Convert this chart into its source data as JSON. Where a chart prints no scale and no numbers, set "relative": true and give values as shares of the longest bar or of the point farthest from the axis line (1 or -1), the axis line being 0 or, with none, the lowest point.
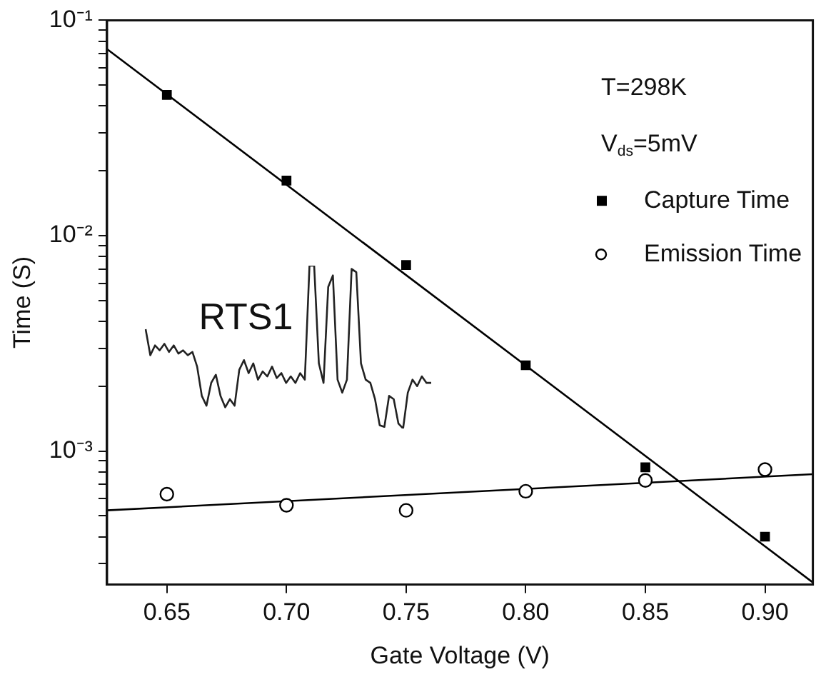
{
  "chart_data": [
    {
      "type": "scatter",
      "xlabel": "Gate Voltage (V)",
      "ylabel": "Time (S)",
      "annotations": [
        "T=298K",
        "V$_{ds}$=5mV",
        "RTS1"
      ],
      "log": "y",
      "legend": "top right",
      "grid": false,
      "xlim": [
        0.625,
        0.92
      ],
      "xticks": [
        {
          "value": 0.65,
          "label": "0.65"
        },
        {
          "value": 0.7,
          "label": "0.70"
        },
        {
          "value": 0.75,
          "label": "0.75"
        },
        {
          "value": 0.8,
          "label": "0.80"
        },
        {
          "value": 0.85,
          "label": "0.85"
        },
        {
          "value": 0.9,
          "label": "0.90"
        }
      ],
      "ylim": [
        0.00024,
        0.1
      ],
      "yticks": [
        {
          "value": 0.0003,
          "label": null
        },
        {
          "value": 0.0004,
          "label": null
        },
        {
          "value": 0.0005,
          "label": null
        },
        {
          "value": 0.0006,
          "label": null
        },
        {
          "value": 0.0007,
          "label": null
        },
        {
          "value": 0.0008,
          "label": null
        },
        {
          "value": 0.0009,
          "label": null
        },
        {
          "value": 0.001,
          "label": "10⁻³"
        },
        {
          "value": 0.002,
          "label": null
        },
        {
          "value": 0.003,
          "label": null
        },
        {
          "value": 0.004,
          "label": null
        },
        {
          "value": 0.005,
          "label": null
        },
        {
          "value": 0.006,
          "label": null
        },
        {
          "value": 0.007,
          "label": null
        },
        {
          "value": 0.008,
          "label": null
        },
        {
          "value": 0.009,
          "label": null
        },
        {
          "value": 0.01,
          "label": "10⁻²"
        },
        {
          "value": 0.02,
          "label": null
        },
        {
          "value": 0.03,
          "label": null
        },
        {
          "value": 0.04,
          "label": null
        },
        {
          "value": 0.05,
          "label": null
        },
        {
          "value": 0.06,
          "label": null
        },
        {
          "value": 0.07,
          "label": null
        },
        {
          "value": 0.08,
          "label": null
        },
        {
          "value": 0.09,
          "label": null
        },
        {
          "value": 0.1,
          "label": "10⁻¹"
        }
      ],
      "series": [
        {
          "name": "Capture Time",
          "marker": "square",
          "color": "#000000",
          "x": [
            0.65,
            0.7,
            0.75,
            0.8,
            0.85,
            0.9
          ],
          "values": [
            0.045,
            0.018,
            0.0073,
            0.0025,
            0.00084,
            0.0004
          ]
        },
        {
          "name": "Emission Time",
          "marker": "circle",
          "color": "#000000",
          "x": [
            0.65,
            0.7,
            0.75,
            0.8,
            0.85,
            0.9
          ],
          "values": [
            0.00063,
            0.00056,
            0.00053,
            0.00065,
            0.00073,
            0.00082
          ]
        },
        {
          "type": "line",
          "marker": "none",
          "color": "#000000",
          "x": [
            0.625,
            0.92
          ],
          "values": [
            0.0735,
            0.000245
          ]
        },
        {
          "type": "line",
          "marker": "none",
          "color": "#000000",
          "x": [
            0.625,
            0.92
          ],
          "values": [
            0.00053,
            0.00078
          ]
        }
      ]
    },
    {
      "type": "line",
      "relative": true,
      "color": "#222222",
      "categories": [
        null,
        null,
        null,
        null,
        null,
        null,
        null,
        null,
        null,
        null,
        null,
        null,
        null,
        null,
        null,
        null,
        null,
        null,
        null,
        null,
        null,
        null,
        null,
        null,
        null,
        null,
        null,
        null,
        null,
        null,
        null,
        null,
        null,
        null,
        null,
        null,
        null,
        null,
        null,
        null,
        null,
        null,
        null,
        null,
        null,
        null,
        null,
        null,
        null,
        null,
        null,
        null,
        null,
        null,
        null,
        null,
        null,
        null,
        null,
        null,
        null,
        null
      ],
      "values": [
        0.61,
        0.45,
        0.51,
        0.48,
        0.52,
        0.47,
        0.51,
        0.46,
        0.48,
        0.45,
        0.47,
        0.38,
        0.2,
        0.14,
        0.28,
        0.33,
        0.2,
        0.13,
        0.18,
        0.14,
        0.36,
        0.42,
        0.34,
        0.4,
        0.3,
        0.35,
        0.32,
        0.38,
        0.31,
        0.34,
        0.28,
        0.32,
        0.28,
        0.34,
        0.3,
        1,
        1,
        0.4,
        0.28,
        0.87,
        0.94,
        0.3,
        0.22,
        0.3,
        0.98,
        0.96,
        0.4,
        0.3,
        0.28,
        0.18,
        0.02,
        0.01,
        0.2,
        0.18,
        0.03,
        0,
        0.22,
        0.3,
        0.26,
        0.32,
        0.28,
        0.28
      ]
    }
  ]
}
